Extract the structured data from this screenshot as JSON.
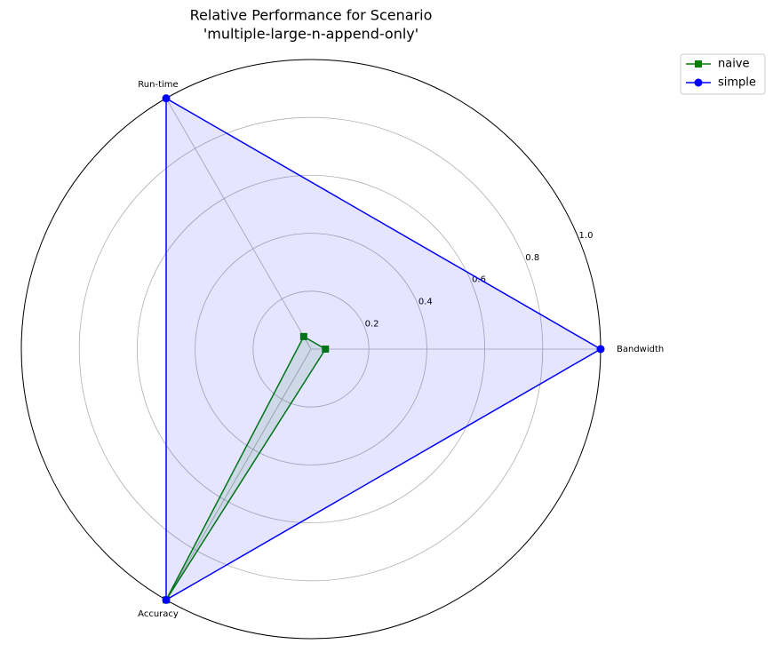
{
  "chart_data": {
    "type": "radar",
    "title": [
      "Relative Performance for Scenario",
      "'multiple-large-n-append-only'"
    ],
    "categories": [
      "Bandwidth",
      "Run-time",
      "Accuracy"
    ],
    "series": [
      {
        "name": "naive",
        "color": "#008000",
        "marker": "square",
        "values": [
          0.05,
          0.05,
          1.0
        ]
      },
      {
        "name": "simple",
        "color": "#0000ff",
        "marker": "circle",
        "values": [
          1.0,
          1.0,
          1.0
        ]
      }
    ],
    "ylim": [
      0,
      1
    ],
    "yticks": [
      0.2,
      0.4,
      0.6,
      0.8,
      {
        "value": 1,
        "label": "1.0"
      }
    ],
    "grid": true,
    "legend": "upper right"
  }
}
